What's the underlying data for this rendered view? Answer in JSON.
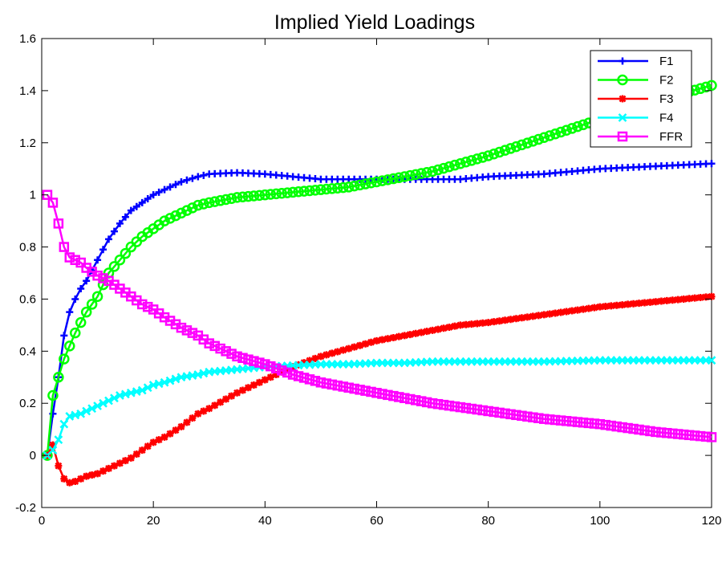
{
  "chart_data": {
    "type": "line",
    "title": "Implied Yield Loadings",
    "xlabel": "",
    "ylabel": "",
    "xlim": [
      0,
      120
    ],
    "ylim": [
      -0.2,
      1.6
    ],
    "xticks": [
      "0",
      "20",
      "40",
      "60",
      "80",
      "100",
      "120"
    ],
    "yticks": [
      "-0.2",
      "0",
      "0.2",
      "0.4",
      "0.6",
      "0.8",
      "1",
      "1.2",
      "1.4",
      "1.6"
    ],
    "grid": false,
    "legend_position": "top-right",
    "series": [
      {
        "name": "F1",
        "color": "#0000ff",
        "marker": "plus",
        "x": [
          1,
          2,
          3,
          4,
          5,
          6,
          7,
          8,
          10,
          12,
          14,
          16,
          18,
          20,
          22,
          25,
          28,
          30,
          35,
          40,
          45,
          50,
          55,
          60,
          65,
          70,
          75,
          80,
          90,
          100,
          110,
          120
        ],
        "values": [
          0.0,
          0.16,
          0.3,
          0.46,
          0.55,
          0.6,
          0.64,
          0.67,
          0.75,
          0.83,
          0.89,
          0.94,
          0.97,
          1.0,
          1.02,
          1.05,
          1.07,
          1.08,
          1.085,
          1.08,
          1.07,
          1.06,
          1.06,
          1.06,
          1.06,
          1.06,
          1.06,
          1.07,
          1.08,
          1.1,
          1.11,
          1.12
        ]
      },
      {
        "name": "F2",
        "color": "#00ff00",
        "marker": "circle",
        "x": [
          1,
          2,
          3,
          4,
          5,
          6,
          7,
          8,
          10,
          12,
          14,
          16,
          18,
          20,
          22,
          25,
          28,
          30,
          35,
          40,
          45,
          50,
          55,
          60,
          65,
          70,
          75,
          80,
          90,
          100,
          110,
          120
        ],
        "values": [
          0.0,
          0.23,
          0.3,
          0.37,
          0.42,
          0.47,
          0.51,
          0.55,
          0.61,
          0.7,
          0.75,
          0.8,
          0.84,
          0.87,
          0.9,
          0.93,
          0.96,
          0.97,
          0.99,
          1.0,
          1.01,
          1.02,
          1.03,
          1.05,
          1.07,
          1.09,
          1.12,
          1.15,
          1.22,
          1.29,
          1.36,
          1.42
        ]
      },
      {
        "name": "F3",
        "color": "#ff0000",
        "marker": "star",
        "x": [
          1,
          2,
          3,
          4,
          5,
          6,
          7,
          8,
          10,
          12,
          14,
          16,
          18,
          20,
          22,
          25,
          28,
          30,
          35,
          40,
          45,
          50,
          55,
          60,
          65,
          70,
          75,
          80,
          90,
          100,
          110,
          120
        ],
        "values": [
          0.0,
          0.04,
          -0.04,
          -0.09,
          -0.105,
          -0.1,
          -0.09,
          -0.08,
          -0.07,
          -0.05,
          -0.03,
          -0.01,
          0.02,
          0.05,
          0.07,
          0.11,
          0.16,
          0.18,
          0.24,
          0.29,
          0.34,
          0.38,
          0.41,
          0.44,
          0.46,
          0.48,
          0.5,
          0.51,
          0.54,
          0.57,
          0.59,
          0.61
        ]
      },
      {
        "name": "F4",
        "color": "#00ffff",
        "marker": "x",
        "x": [
          1,
          2,
          3,
          4,
          5,
          6,
          7,
          8,
          10,
          12,
          14,
          16,
          18,
          20,
          22,
          25,
          28,
          30,
          35,
          40,
          45,
          50,
          55,
          60,
          65,
          70,
          75,
          80,
          90,
          100,
          110,
          120
        ],
        "values": [
          0.0,
          0.02,
          0.06,
          0.12,
          0.15,
          0.155,
          0.16,
          0.17,
          0.19,
          0.21,
          0.23,
          0.24,
          0.25,
          0.27,
          0.28,
          0.3,
          0.31,
          0.32,
          0.33,
          0.34,
          0.345,
          0.35,
          0.35,
          0.355,
          0.355,
          0.36,
          0.36,
          0.36,
          0.36,
          0.365,
          0.365,
          0.365
        ]
      },
      {
        "name": "FFR",
        "color": "#ff00ff",
        "marker": "square",
        "x": [
          1,
          2,
          3,
          4,
          5,
          6,
          7,
          8,
          10,
          12,
          14,
          16,
          18,
          20,
          22,
          25,
          28,
          30,
          35,
          40,
          45,
          50,
          55,
          60,
          65,
          70,
          75,
          80,
          90,
          100,
          110,
          120
        ],
        "values": [
          1.0,
          0.97,
          0.89,
          0.8,
          0.76,
          0.75,
          0.74,
          0.72,
          0.69,
          0.67,
          0.64,
          0.61,
          0.58,
          0.56,
          0.53,
          0.49,
          0.46,
          0.43,
          0.38,
          0.35,
          0.31,
          0.28,
          0.26,
          0.24,
          0.22,
          0.2,
          0.185,
          0.17,
          0.14,
          0.12,
          0.09,
          0.07
        ]
      }
    ]
  }
}
